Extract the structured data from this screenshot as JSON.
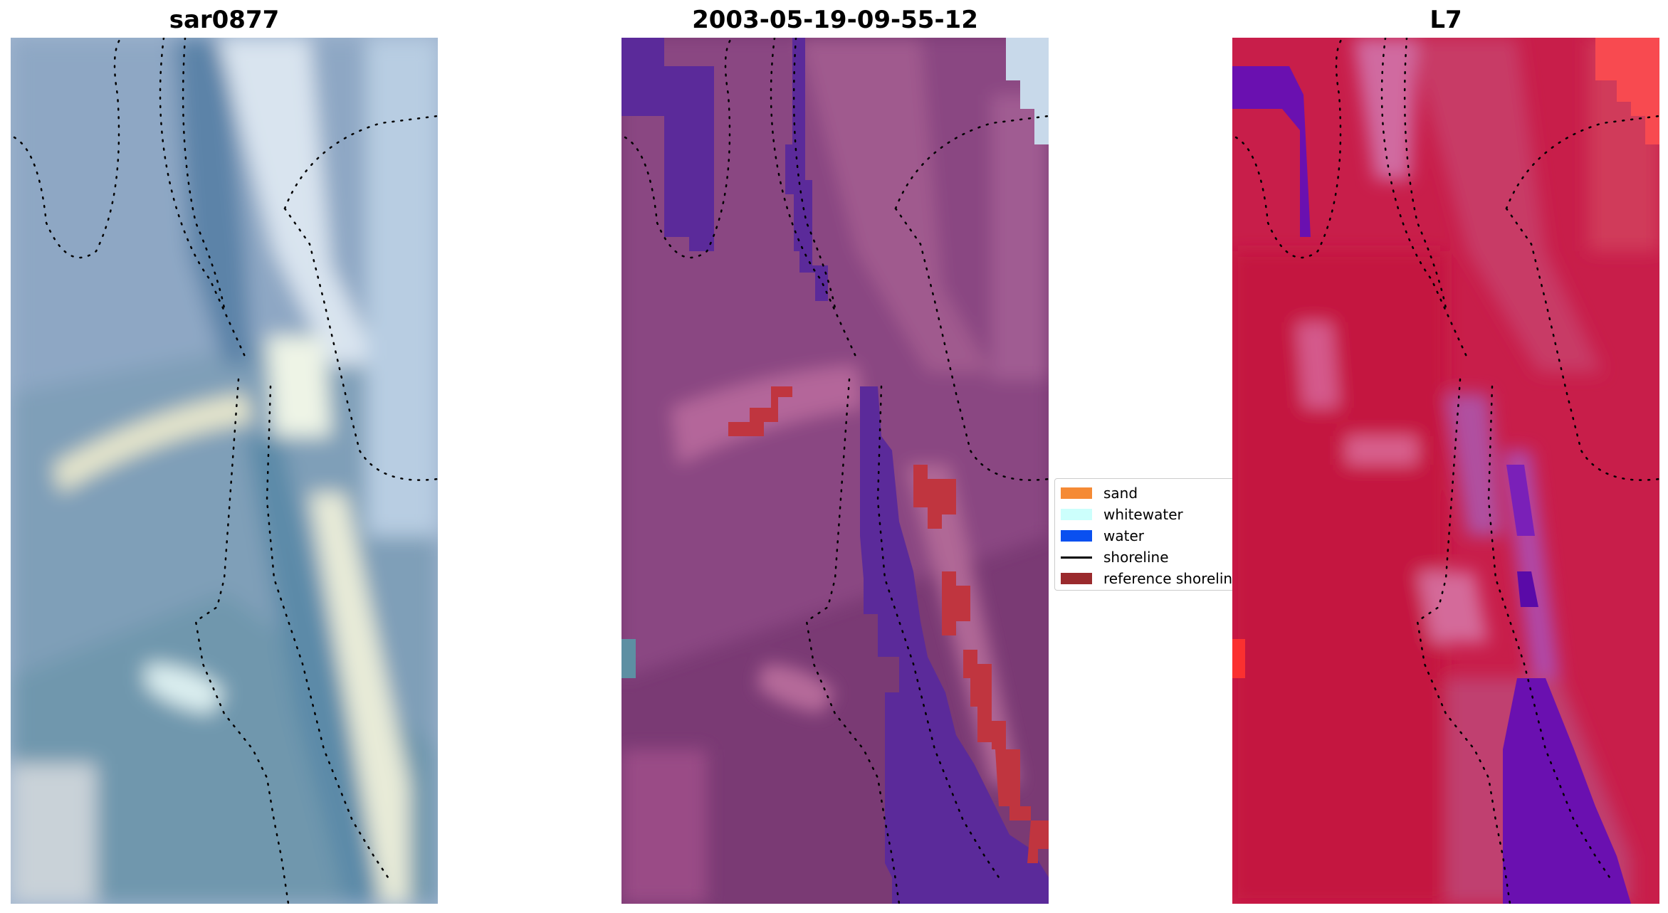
{
  "panels": {
    "left_title": "sar0877",
    "middle_title": "2003-05-19-09-55-12",
    "right_title": "L7"
  },
  "legend": {
    "items": [
      {
        "label": "sand",
        "color": "#f58a35"
      },
      {
        "label": "whitewater",
        "color": "#ccfffc"
      },
      {
        "label": "water",
        "color": "#0a50f0"
      },
      {
        "label": "shoreline",
        "color": "#000000"
      },
      {
        "label": "reference shoreline",
        "color": "#9a2a2d"
      }
    ]
  },
  "colors": {
    "rgb_background": "#9fb4cf",
    "classified_background": "#7a3a74",
    "water_class": "#5b2a9a",
    "reference_shoreline_pixels": "#c0353f",
    "mndwi_background": "#c81e4a",
    "mndwi_water": "#6a10b0"
  }
}
